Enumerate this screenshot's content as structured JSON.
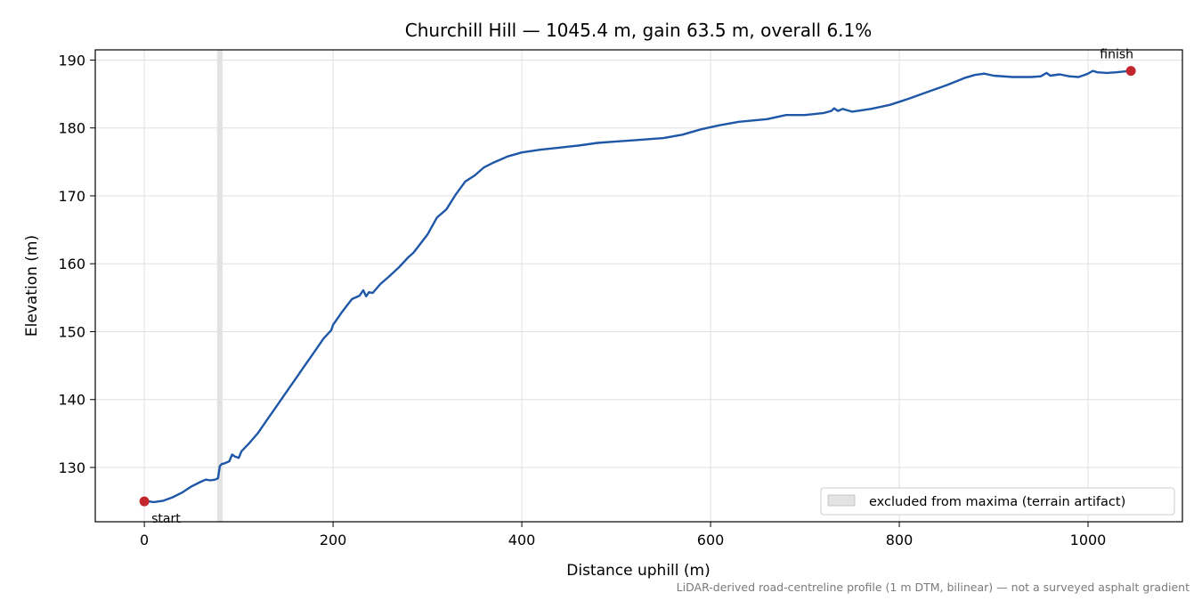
{
  "chart_data": {
    "type": "line",
    "title": "Churchill Hill — 1045.4 m, gain 63.5 m, overall 6.1%",
    "xlabel": "Distance uphill (m)",
    "ylabel": "Elevation (m)",
    "xlim": [
      -52,
      1100
    ],
    "ylim": [
      122,
      191.5
    ],
    "xticks": [
      0,
      200,
      400,
      600,
      800,
      1000
    ],
    "yticks": [
      130,
      140,
      150,
      160,
      170,
      180,
      190
    ],
    "xtick_labels": [
      "0",
      "200",
      "400",
      "600",
      "800",
      "1000"
    ],
    "ytick_labels": [
      "130",
      "140",
      "150",
      "160",
      "170",
      "180",
      "190"
    ],
    "grid": true,
    "excluded_band": [
      77,
      83
    ],
    "legend": {
      "position": "lower-right",
      "entries": [
        {
          "label": "excluded from maxima (terrain artifact)",
          "color": "#e3e3e3"
        }
      ]
    },
    "series": [
      {
        "color": "#1f57a8",
        "x": [
          0,
          10,
          20,
          30,
          40,
          50,
          60,
          65,
          70,
          75,
          78,
          80,
          82,
          85,
          90,
          93,
          96,
          100,
          103,
          110,
          120,
          130,
          140,
          150,
          160,
          170,
          180,
          190,
          198,
          200,
          205,
          210,
          220,
          228,
          232,
          235,
          238,
          242,
          250,
          260,
          270,
          280,
          285,
          290,
          300,
          310,
          320,
          330,
          340,
          350,
          360,
          370,
          380,
          385,
          390,
          400,
          420,
          440,
          460,
          480,
          500,
          520,
          550,
          570,
          590,
          610,
          630,
          660,
          680,
          700,
          720,
          728,
          731,
          735,
          740,
          745,
          750,
          770,
          790,
          810,
          830,
          850,
          870,
          880,
          890,
          900,
          920,
          940,
          950,
          956,
          960,
          970,
          980,
          990,
          1000,
          1005,
          1010,
          1020,
          1030,
          1045
        ],
        "y": [
          125.1,
          124.9,
          125.1,
          125.6,
          126.3,
          127.2,
          127.9,
          128.2,
          128.1,
          128.2,
          128.4,
          130.2,
          130.5,
          130.6,
          130.9,
          131.9,
          131.6,
          131.4,
          132.4,
          133.4,
          135.0,
          137.0,
          139.0,
          141.0,
          143.0,
          145.0,
          147.0,
          149.0,
          150.2,
          151.0,
          152.0,
          153.0,
          154.8,
          155.3,
          156.1,
          155.2,
          155.8,
          155.7,
          157.0,
          158.2,
          159.5,
          161.0,
          161.6,
          162.5,
          164.3,
          166.8,
          168.0,
          170.2,
          172.1,
          173.0,
          174.2,
          174.9,
          175.5,
          175.8,
          176.0,
          176.4,
          176.8,
          177.1,
          177.4,
          177.8,
          178.0,
          178.2,
          178.5,
          179.0,
          179.8,
          180.4,
          180.9,
          181.3,
          181.9,
          181.9,
          182.2,
          182.5,
          182.9,
          182.5,
          182.8,
          182.6,
          182.4,
          182.8,
          183.4,
          184.3,
          185.3,
          186.3,
          187.4,
          187.8,
          188.0,
          187.7,
          187.5,
          187.5,
          187.6,
          188.1,
          187.7,
          187.9,
          187.6,
          187.5,
          188.0,
          188.4,
          188.2,
          188.1,
          188.2,
          188.4
        ]
      }
    ],
    "markers": [
      {
        "x": 0,
        "y": 125.0,
        "label": "start",
        "color": "#c1272d"
      },
      {
        "x": 1045.4,
        "y": 188.4,
        "label": "finish",
        "color": "#c1272d"
      }
    ],
    "footnote": "LiDAR-derived road-centreline profile (1 m DTM, bilinear) — not a surveyed asphalt gradient"
  }
}
